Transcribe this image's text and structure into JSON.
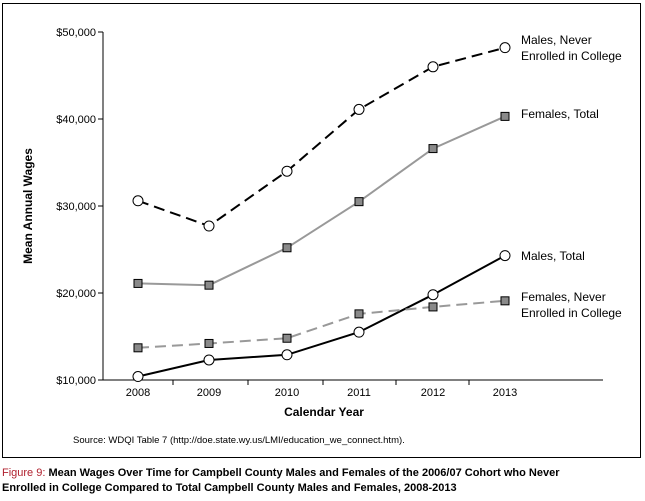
{
  "chart_data": {
    "type": "line",
    "xlabel": "Calendar Year",
    "ylabel": "Mean Annual Wages",
    "categories": [
      "2008",
      "2009",
      "2010",
      "2011",
      "2012",
      "2013"
    ],
    "ylim": [
      10000,
      50000
    ],
    "yticks": [
      10000,
      20000,
      30000,
      40000,
      50000
    ],
    "ytick_labels": [
      "$10,000",
      "$20,000",
      "$30,000",
      "$40,000",
      "$50,000"
    ],
    "grid": false,
    "legend": "direct labels at right end of each line",
    "series": [
      {
        "name_lines": [
          "Males, Never",
          "Enrolled in College"
        ],
        "values": [
          30600,
          27700,
          34000,
          41100,
          46000,
          48200
        ],
        "color": "#000000",
        "line_style": "dashed",
        "marker": "open-circle"
      },
      {
        "name_lines": [
          "Females, Total"
        ],
        "values": [
          21100,
          20900,
          25200,
          30500,
          36600,
          40300
        ],
        "color": "#999999",
        "line_style": "solid",
        "marker": "gray-square"
      },
      {
        "name_lines": [
          "Males, Total"
        ],
        "values": [
          10400,
          12300,
          12900,
          15500,
          19800,
          24300
        ],
        "color": "#000000",
        "line_style": "solid",
        "marker": "open-circle"
      },
      {
        "name_lines": [
          "Females, Never",
          "Enrolled in College"
        ],
        "values": [
          13700,
          14200,
          14800,
          17600,
          18400,
          19100
        ],
        "color": "#999999",
        "line_style": "dashed",
        "marker": "gray-square"
      }
    ]
  },
  "source_note": "Source: WDQI Table 7 (http://doe.state.wy.us/LMI/education_we_connect.htm).",
  "caption": {
    "lead": "Figure 9: ",
    "line1": "Mean Wages Over Time for Campbell County Males and Females of the 2006/07 Cohort who Never",
    "line2": "Enrolled in College Compared to Total Campbell County Males and Females, 2008-2013"
  }
}
